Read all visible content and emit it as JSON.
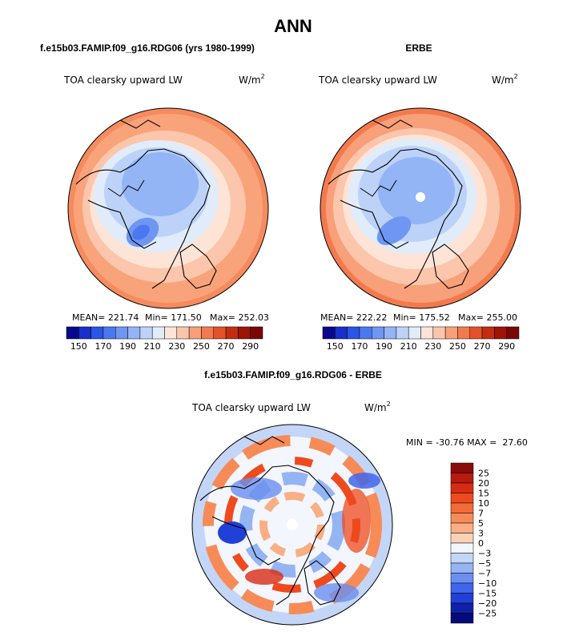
{
  "page": {
    "title": "ANN"
  },
  "chart_data": [
    {
      "type": "heatmap",
      "projection": "north polar stereographic",
      "title": "f.e15b03.FAMIP.f09_g16.RDG06 (yrs 1980-1999)",
      "variable_label": "TOA clearsky upward LW",
      "units_label": "W/m",
      "units_exponent": "2",
      "stats": {
        "mean_label": "MEAN= 221.74",
        "min_label": "Min= 171.50",
        "max_label": "Max= 252.03",
        "mean": 221.74,
        "min": 171.5,
        "max": 252.03
      },
      "colorbar": {
        "orientation": "horizontal",
        "levels": [
          150,
          160,
          170,
          180,
          190,
          200,
          210,
          220,
          230,
          240,
          250,
          260,
          270,
          280,
          290
        ],
        "tick_labels": [
          "150",
          "170",
          "190",
          "210",
          "230",
          "250",
          "270",
          "290"
        ],
        "colors": [
          "#08088f",
          "#1a2fc9",
          "#2b55e6",
          "#4a78f0",
          "#6e96f2",
          "#93b4f5",
          "#bcd2f8",
          "#e1ecfb",
          "#fde4d7",
          "#fbc6ab",
          "#f7a07a",
          "#f37a4e",
          "#e55128",
          "#c42c10",
          "#9e1408",
          "#7a0606"
        ]
      }
    },
    {
      "type": "heatmap",
      "projection": "north polar stereographic",
      "title": "ERBE",
      "variable_label": "TOA clearsky upward LW",
      "units_label": "W/m",
      "units_exponent": "2",
      "stats": {
        "mean_label": "MEAN= 222.22",
        "min_label": "Min= 175.52",
        "max_label": "Max= 255.00",
        "mean": 222.22,
        "min": 175.52,
        "max": 255.0
      },
      "colorbar": {
        "orientation": "horizontal",
        "levels": [
          150,
          160,
          170,
          180,
          190,
          200,
          210,
          220,
          230,
          240,
          250,
          260,
          270,
          280,
          290
        ],
        "tick_labels": [
          "150",
          "170",
          "190",
          "210",
          "230",
          "250",
          "270",
          "290"
        ],
        "colors": [
          "#08088f",
          "#1a2fc9",
          "#2b55e6",
          "#4a78f0",
          "#6e96f2",
          "#93b4f5",
          "#bcd2f8",
          "#e1ecfb",
          "#fde4d7",
          "#fbc6ab",
          "#f7a07a",
          "#f37a4e",
          "#e55128",
          "#c42c10",
          "#9e1408",
          "#7a0606"
        ]
      }
    },
    {
      "type": "heatmap",
      "projection": "north polar stereographic",
      "title": "f.e15b03.FAMIP.f09_g16.RDG06 - ERBE",
      "variable_label": "TOA clearsky upward LW",
      "units_label": "W/m",
      "units_exponent": "2",
      "stats": {
        "minmax_label": "MIN = -30.76 MAX =  27.60",
        "min": -30.76,
        "max": 27.6
      },
      "colorbar": {
        "orientation": "vertical",
        "levels": [
          25,
          20,
          15,
          10,
          7,
          5,
          3,
          0,
          -3,
          -5,
          -7,
          -10,
          -15,
          -20,
          -25
        ],
        "tick_labels": [
          "25",
          "20",
          "15",
          "10",
          "7",
          "5",
          "3",
          "0",
          "−3",
          "−5",
          "−7",
          "−10",
          "−15",
          "−20",
          "−25"
        ],
        "colors": [
          "#8b0a0a",
          "#b81a10",
          "#d92b14",
          "#ee4a1e",
          "#f46a38",
          "#f78b58",
          "#f9ae84",
          "#fbd2b8",
          "#f3f6fd",
          "#c4d6f7",
          "#94b4f3",
          "#6a8ff0",
          "#3f66ec",
          "#2040d8",
          "#1020a8",
          "#050a7a"
        ]
      }
    }
  ]
}
